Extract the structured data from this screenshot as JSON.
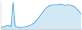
{
  "chart_data": {
    "type": "line",
    "x": [
      0,
      1,
      2,
      3,
      4,
      5,
      6,
      7,
      8,
      9,
      10,
      11,
      12,
      13,
      14,
      15,
      16,
      17,
      18,
      19,
      20,
      21,
      22,
      23,
      24,
      25,
      26,
      27,
      28,
      29,
      30,
      31,
      32,
      33,
      34,
      35,
      36,
      37,
      38,
      39
    ],
    "values": [
      3,
      3.2,
      3.5,
      4,
      3.8,
      3.5,
      16,
      3.8,
      3.2,
      3.0,
      3.1,
      3.2,
      3.4,
      3.6,
      4.0,
      4.5,
      5.2,
      6.2,
      7.5,
      9.0,
      10.5,
      12.0,
      13.2,
      14.0,
      14.5,
      14.8,
      14.9,
      14.7,
      15.0,
      15.2,
      15.0,
      14.6,
      14.8,
      14.9,
      14.5,
      14.2,
      13.5,
      12.5,
      11.2,
      10.0
    ],
    "color": "#4da6d9",
    "xlim": [
      0,
      39
    ],
    "ylim": [
      2.0,
      17.0
    ],
    "tick_labels": false
  }
}
